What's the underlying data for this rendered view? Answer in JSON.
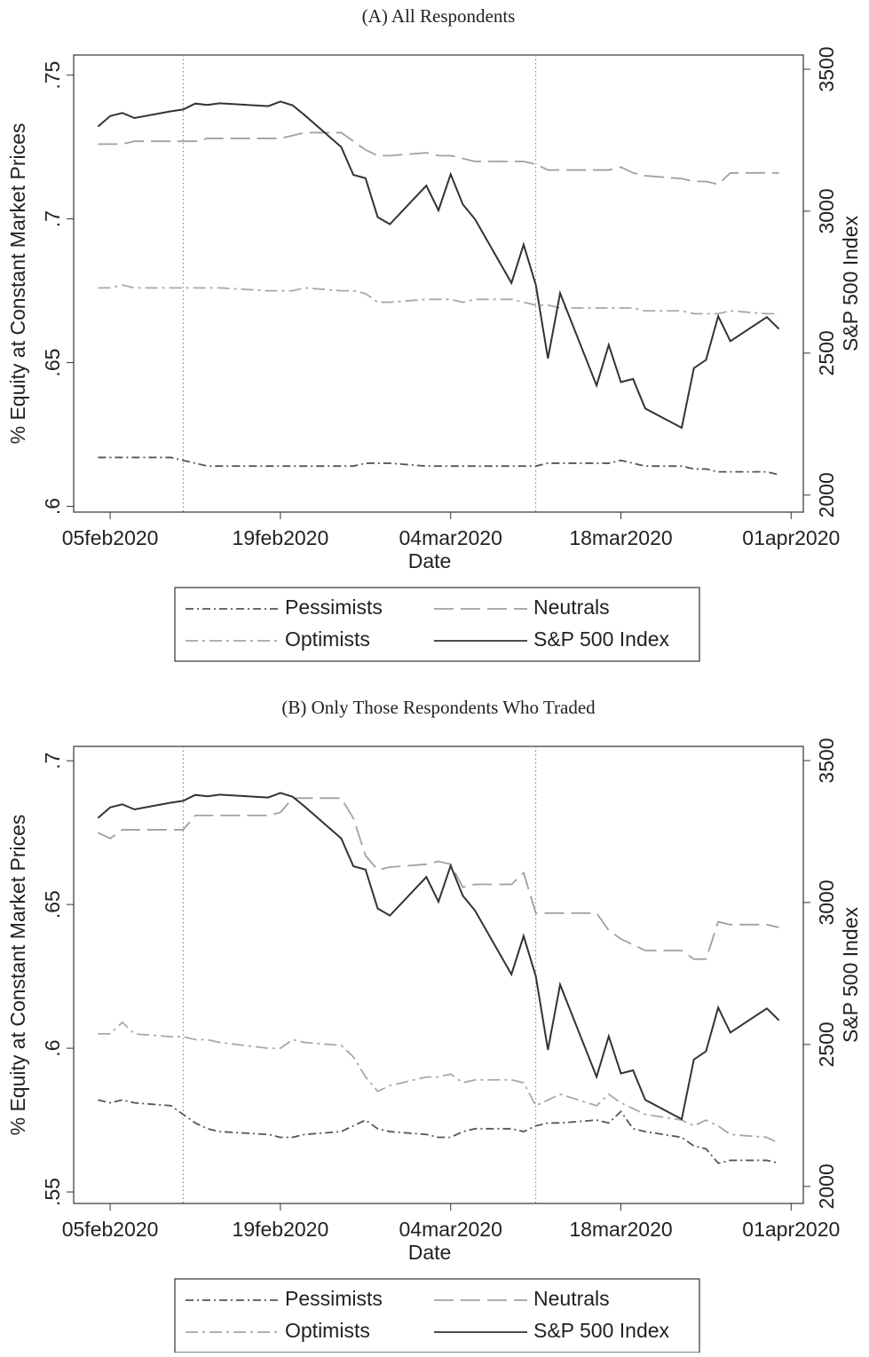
{
  "chart_data": [
    {
      "type": "line",
      "title": "(A)  All Respondents",
      "xlabel": "Date",
      "ylabel": "% Equity at Constant Market Prices",
      "y2label": "S&P 500 Index",
      "x": [
        "2020-02-04",
        "2020-02-05",
        "2020-02-06",
        "2020-02-07",
        "2020-02-10",
        "2020-02-11",
        "2020-02-12",
        "2020-02-13",
        "2020-02-14",
        "2020-02-18",
        "2020-02-19",
        "2020-02-20",
        "2020-02-21",
        "2020-02-24",
        "2020-02-25",
        "2020-02-26",
        "2020-02-27",
        "2020-02-28",
        "2020-03-02",
        "2020-03-03",
        "2020-03-04",
        "2020-03-05",
        "2020-03-06",
        "2020-03-09",
        "2020-03-10",
        "2020-03-11",
        "2020-03-12",
        "2020-03-13",
        "2020-03-16",
        "2020-03-17",
        "2020-03-18",
        "2020-03-19",
        "2020-03-20",
        "2020-03-23",
        "2020-03-24",
        "2020-03-25",
        "2020-03-26",
        "2020-03-27",
        "2020-03-30",
        "2020-03-31"
      ],
      "xlim": [
        "2020-02-02",
        "2020-04-02"
      ],
      "xticks": [
        {
          "value": "2020-02-05",
          "label": "05feb2020"
        },
        {
          "value": "2020-02-19",
          "label": "19feb2020"
        },
        {
          "value": "2020-03-04",
          "label": "04mar2020"
        },
        {
          "value": "2020-03-18",
          "label": "18mar2020"
        },
        {
          "value": "2020-04-01",
          "label": "01apr2020"
        }
      ],
      "vlines": [
        "2020-02-11",
        "2020-03-11"
      ],
      "ylim": [
        0.598,
        0.757
      ],
      "yticks": [
        {
          "value": 0.6,
          "label": ".6"
        },
        {
          "value": 0.65,
          "label": ".65"
        },
        {
          "value": 0.7,
          "label": ".7"
        },
        {
          "value": 0.75,
          "label": ".75"
        }
      ],
      "y2lim": [
        1940,
        3550
      ],
      "y2ticks": [
        2000,
        2500,
        3000,
        3500
      ],
      "series": [
        {
          "name": "Pessimists",
          "color": "#555555",
          "dash": "9,4,2,4",
          "values": [
            0.617,
            0.617,
            0.617,
            0.617,
            0.617,
            0.616,
            0.615,
            0.614,
            0.614,
            0.614,
            0.614,
            0.614,
            0.614,
            0.614,
            0.614,
            0.615,
            0.615,
            0.615,
            0.614,
            0.614,
            0.614,
            0.614,
            0.614,
            0.614,
            0.614,
            0.614,
            0.615,
            0.615,
            0.615,
            0.615,
            0.616,
            0.615,
            0.614,
            0.614,
            0.613,
            0.613,
            0.612,
            0.612,
            0.612,
            0.611
          ]
        },
        {
          "name": "Neutrals",
          "color": "#a0a0a0",
          "dash": "22,8",
          "values": [
            0.726,
            0.726,
            0.726,
            0.727,
            0.727,
            0.727,
            0.727,
            0.728,
            0.728,
            0.728,
            0.728,
            0.729,
            0.73,
            0.73,
            0.727,
            0.724,
            0.722,
            0.722,
            0.723,
            0.722,
            0.722,
            0.721,
            0.72,
            0.72,
            0.72,
            0.719,
            0.717,
            0.717,
            0.717,
            0.717,
            0.718,
            0.716,
            0.715,
            0.714,
            0.713,
            0.713,
            0.712,
            0.716,
            0.716,
            0.716
          ]
        },
        {
          "name": "Optimists",
          "color": "#a8a8a8",
          "dash": "14,5,3,5",
          "values": [
            0.676,
            0.676,
            0.677,
            0.676,
            0.676,
            0.676,
            0.676,
            0.676,
            0.676,
            0.675,
            0.675,
            0.675,
            0.676,
            0.675,
            0.675,
            0.674,
            0.671,
            0.671,
            0.672,
            0.672,
            0.672,
            0.671,
            0.672,
            0.672,
            0.671,
            0.67,
            0.67,
            0.669,
            0.669,
            0.669,
            0.669,
            0.669,
            0.668,
            0.668,
            0.667,
            0.667,
            0.667,
            0.668,
            0.667,
            0.667
          ]
        },
        {
          "name": "S&P 500 Index",
          "color": "#333333",
          "dash": "none",
          "axis": "y2",
          "values": [
            3298,
            3335,
            3346,
            3328,
            3352,
            3358,
            3379,
            3374,
            3380,
            3370,
            3386,
            3373,
            3338,
            3226,
            3128,
            3116,
            2979,
            2954,
            3090,
            3003,
            3130,
            3024,
            2972,
            2747,
            2882,
            2741,
            2481,
            2711,
            2386,
            2529,
            2398,
            2409,
            2305,
            2237,
            2447,
            2476,
            2630,
            2542,
            2627,
            2585
          ]
        }
      ]
    },
    {
      "type": "line",
      "title": "(B)  Only Those Respondents Who Traded",
      "xlabel": "Date",
      "ylabel": "% Equity at Constant Market Prices",
      "y2label": "S&P 500 Index",
      "x": [
        "2020-02-04",
        "2020-02-05",
        "2020-02-06",
        "2020-02-07",
        "2020-02-10",
        "2020-02-11",
        "2020-02-12",
        "2020-02-13",
        "2020-02-14",
        "2020-02-18",
        "2020-02-19",
        "2020-02-20",
        "2020-02-21",
        "2020-02-24",
        "2020-02-25",
        "2020-02-26",
        "2020-02-27",
        "2020-02-28",
        "2020-03-02",
        "2020-03-03",
        "2020-03-04",
        "2020-03-05",
        "2020-03-06",
        "2020-03-09",
        "2020-03-10",
        "2020-03-11",
        "2020-03-12",
        "2020-03-13",
        "2020-03-16",
        "2020-03-17",
        "2020-03-18",
        "2020-03-19",
        "2020-03-20",
        "2020-03-23",
        "2020-03-24",
        "2020-03-25",
        "2020-03-26",
        "2020-03-27",
        "2020-03-30",
        "2020-03-31"
      ],
      "xlim": [
        "2020-02-02",
        "2020-04-02"
      ],
      "xticks": [
        {
          "value": "2020-02-05",
          "label": "05feb2020"
        },
        {
          "value": "2020-02-19",
          "label": "19feb2020"
        },
        {
          "value": "2020-03-04",
          "label": "04mar2020"
        },
        {
          "value": "2020-03-18",
          "label": "18mar2020"
        },
        {
          "value": "2020-04-01",
          "label": "01apr2020"
        }
      ],
      "vlines": [
        "2020-02-11",
        "2020-03-11"
      ],
      "ylim": [
        0.546,
        0.705
      ],
      "yticks": [
        {
          "value": 0.55,
          "label": ".55"
        },
        {
          "value": 0.6,
          "label": ".6"
        },
        {
          "value": 0.65,
          "label": ".65"
        },
        {
          "value": 0.7,
          "label": ".7"
        }
      ],
      "y2lim": [
        1940,
        3550
      ],
      "y2ticks": [
        2000,
        2500,
        3000,
        3500
      ],
      "series": [
        {
          "name": "Pessimists",
          "color": "#555555",
          "dash": "9,4,2,4",
          "values": [
            0.582,
            0.581,
            0.582,
            0.581,
            0.58,
            0.577,
            0.574,
            0.572,
            0.571,
            0.57,
            0.569,
            0.569,
            0.57,
            0.571,
            0.573,
            0.575,
            0.572,
            0.571,
            0.57,
            0.569,
            0.569,
            0.571,
            0.572,
            0.572,
            0.571,
            0.573,
            0.574,
            0.574,
            0.575,
            0.574,
            0.578,
            0.572,
            0.571,
            0.569,
            0.566,
            0.565,
            0.56,
            0.561,
            0.561,
            0.56
          ]
        },
        {
          "name": "Neutrals",
          "color": "#a0a0a0",
          "dash": "22,8",
          "values": [
            0.675,
            0.673,
            0.676,
            0.676,
            0.676,
            0.676,
            0.681,
            0.681,
            0.681,
            0.681,
            0.682,
            0.687,
            0.687,
            0.687,
            0.68,
            0.667,
            0.662,
            0.663,
            0.664,
            0.665,
            0.664,
            0.656,
            0.657,
            0.657,
            0.661,
            0.647,
            0.647,
            0.647,
            0.647,
            0.641,
            0.638,
            0.636,
            0.634,
            0.634,
            0.631,
            0.631,
            0.644,
            0.643,
            0.643,
            0.642
          ]
        },
        {
          "name": "Optimists",
          "color": "#a8a8a8",
          "dash": "14,5,3,5",
          "values": [
            0.605,
            0.605,
            0.609,
            0.605,
            0.604,
            0.604,
            0.603,
            0.603,
            0.602,
            0.6,
            0.6,
            0.603,
            0.602,
            0.601,
            0.597,
            0.59,
            0.585,
            0.587,
            0.59,
            0.59,
            0.591,
            0.588,
            0.589,
            0.589,
            0.588,
            0.58,
            0.582,
            0.584,
            0.58,
            0.584,
            0.581,
            0.579,
            0.577,
            0.575,
            0.573,
            0.575,
            0.573,
            0.57,
            0.569,
            0.567
          ]
        },
        {
          "name": "S&P 500 Index",
          "color": "#333333",
          "dash": "none",
          "axis": "y2",
          "values": [
            3298,
            3335,
            3346,
            3328,
            3352,
            3358,
            3379,
            3374,
            3380,
            3370,
            3386,
            3373,
            3338,
            3226,
            3128,
            3116,
            2979,
            2954,
            3090,
            3003,
            3130,
            3024,
            2972,
            2747,
            2882,
            2741,
            2481,
            2711,
            2386,
            2529,
            2398,
            2409,
            2305,
            2237,
            2447,
            2476,
            2630,
            2542,
            2627,
            2585
          ]
        }
      ]
    }
  ]
}
